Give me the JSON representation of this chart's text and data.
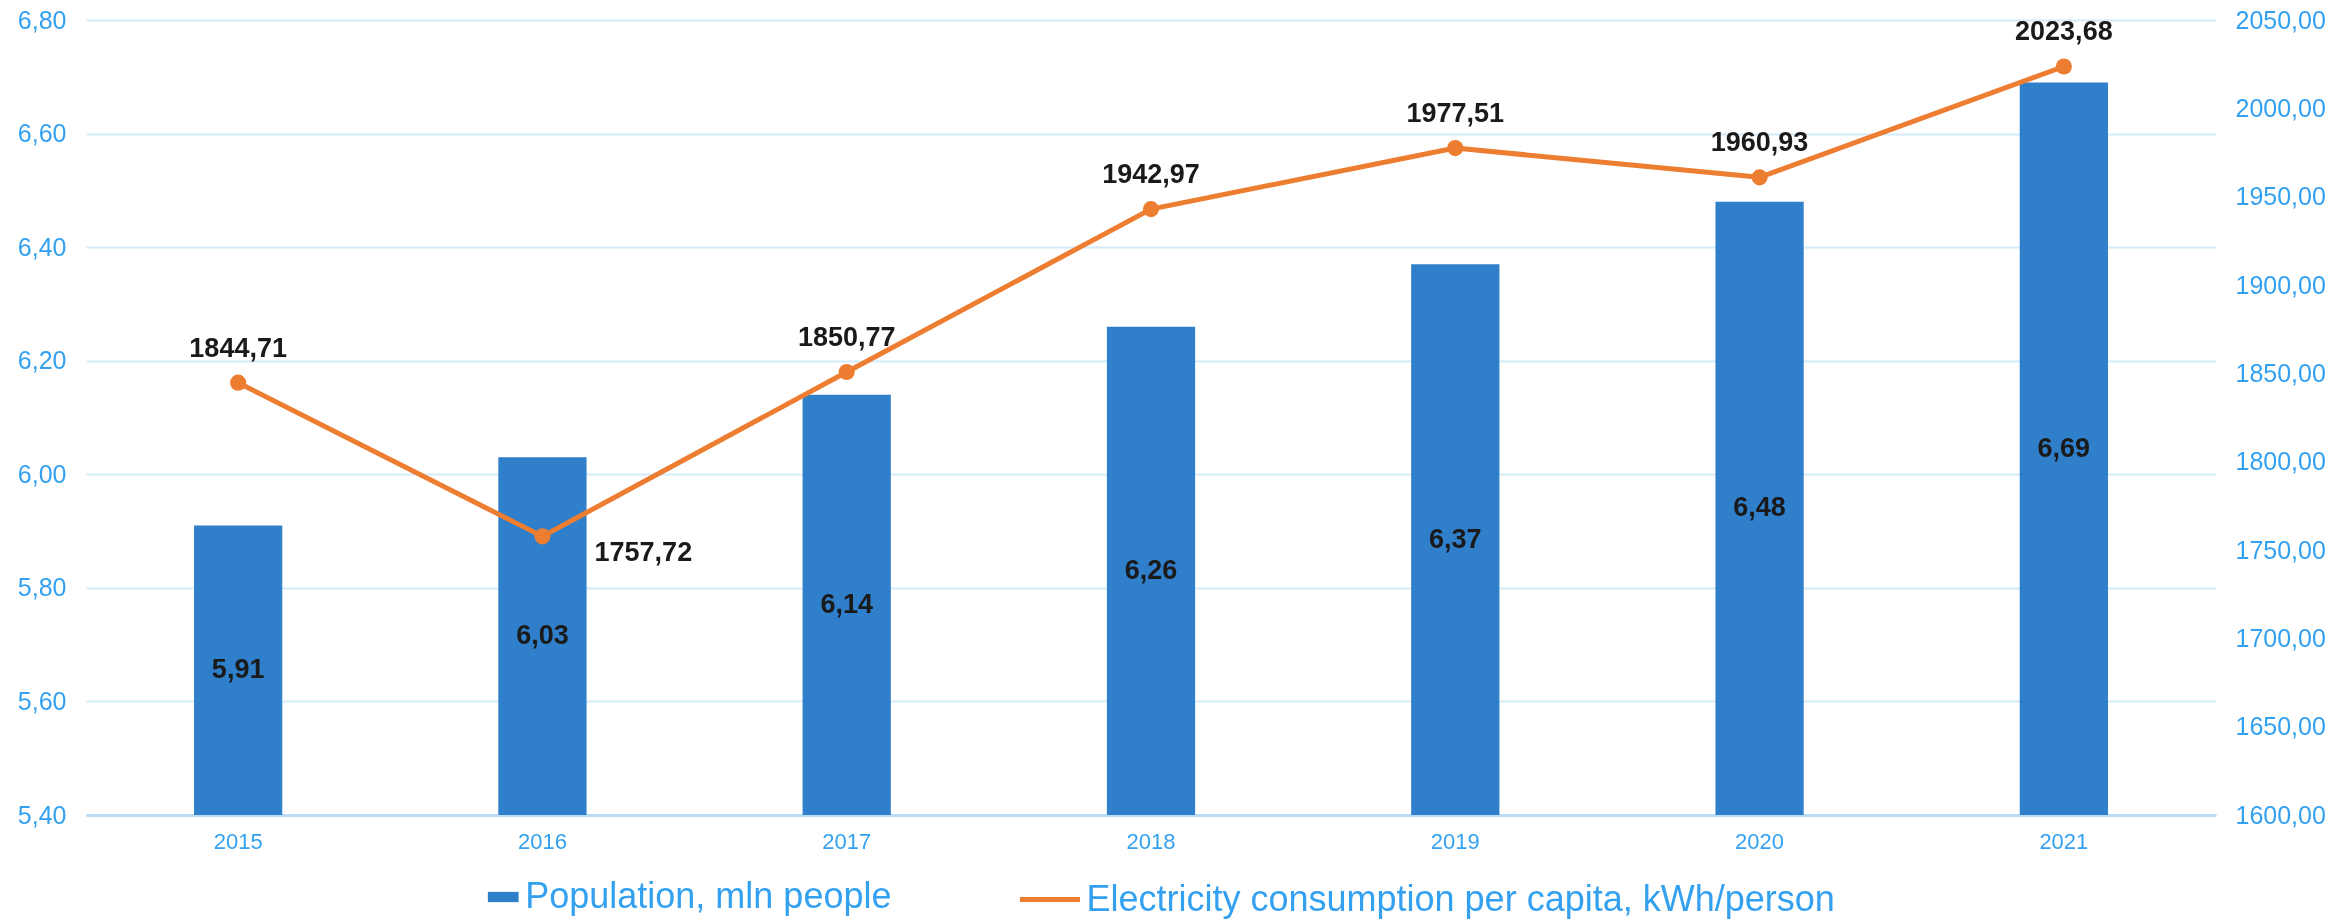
{
  "chart_data": {
    "type": "bar",
    "categories": [
      "2015",
      "2016",
      "2017",
      "2018",
      "2019",
      "2020",
      "2021"
    ],
    "series": [
      {
        "name": "Population, mln people",
        "color": "#2f7fcb",
        "values": [
          5.91,
          6.03,
          6.14,
          6.26,
          6.37,
          6.48,
          6.69
        ],
        "value_labels": [
          "5,91",
          "6,03",
          "6,14",
          "6,26",
          "6,37",
          "6,48",
          "6,69"
        ]
      },
      {
        "name": "Electricity consumption per capita, kWh/person",
        "type": "line",
        "axis": "y2",
        "color": "#ed7d31",
        "values": [
          1844.71,
          1757.72,
          1850.77,
          1942.97,
          1977.51,
          1960.93,
          2023.68
        ],
        "value_labels": [
          "1844,71",
          "1757,72",
          "1850,77",
          "1942,97",
          "1977,51",
          "1960,93",
          "2023,68"
        ]
      }
    ],
    "ylim": [
      5.4,
      6.8
    ],
    "yticks": [
      {
        "value": 5.4,
        "label": "5,40"
      },
      {
        "value": 5.6,
        "label": "5,60"
      },
      {
        "value": 5.8,
        "label": "5,80"
      },
      {
        "value": 6.0,
        "label": "6,00"
      },
      {
        "value": 6.2,
        "label": "6,20"
      },
      {
        "value": 6.4,
        "label": "6,40"
      },
      {
        "value": 6.6,
        "label": "6,60"
      },
      {
        "value": 6.8,
        "label": "6,80"
      }
    ],
    "y2lim": [
      1600,
      2050
    ],
    "y2ticks": [
      {
        "value": 1600,
        "label": "1600,00"
      },
      {
        "value": 1650,
        "label": "1650,00"
      },
      {
        "value": 1700,
        "label": "1700,00"
      },
      {
        "value": 1750,
        "label": "1750,00"
      },
      {
        "value": 1800,
        "label": "1800,00"
      },
      {
        "value": 1850,
        "label": "1850,00"
      },
      {
        "value": 1900,
        "label": "1900,00"
      },
      {
        "value": 1950,
        "label": "1950,00"
      },
      {
        "value": 2000,
        "label": "2000,00"
      },
      {
        "value": 2050,
        "label": "2050,00"
      }
    ],
    "grid": "y",
    "legend": "bottom",
    "marker": "circle",
    "line_style": "solid"
  }
}
